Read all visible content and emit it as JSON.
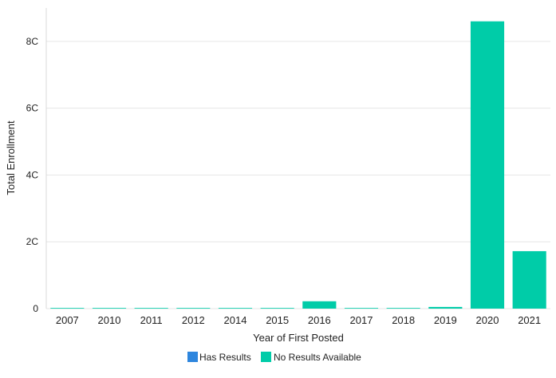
{
  "chart_data": {
    "type": "bar",
    "xlabel": "Year of First Posted",
    "ylabel": "Total Enrollment",
    "categories": [
      "2007",
      "2010",
      "2011",
      "2012",
      "2014",
      "2015",
      "2016",
      "2017",
      "2018",
      "2019",
      "2020",
      "2021"
    ],
    "series": [
      {
        "name": "Has Results",
        "color": "#2e86de",
        "values": [
          0,
          0,
          0,
          0,
          0,
          0,
          0,
          0,
          0,
          0,
          0,
          0
        ]
      },
      {
        "name": "No Results Available",
        "color": "#00cca8",
        "values": [
          20,
          20,
          20,
          20,
          20,
          20,
          220,
          20,
          20,
          50,
          8600,
          1720
        ]
      }
    ],
    "ylim": [
      0,
      9000
    ],
    "yticks": [
      {
        "value": 0,
        "label": "0"
      },
      {
        "value": 2000,
        "label": "2C"
      },
      {
        "value": 4000,
        "label": "4C"
      },
      {
        "value": 6000,
        "label": "6C"
      },
      {
        "value": 8000,
        "label": "8C"
      }
    ],
    "grid": true,
    "legend_position": "bottom-center"
  }
}
